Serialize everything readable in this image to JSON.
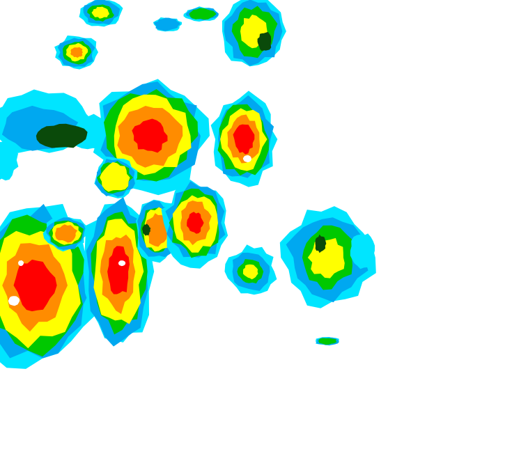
{
  "map": {
    "kind": "radar-reflectivity",
    "background": "#ffffff",
    "palette": {
      "light-cyan": "#00e5ff",
      "blue": "#00a8f0",
      "green": "#00c800",
      "dark-green": "#0a4a0a",
      "yellow": "#ffff00",
      "orange": "#ff8c00",
      "red": "#ff0000",
      "white-core": "#ffffff"
    }
  }
}
